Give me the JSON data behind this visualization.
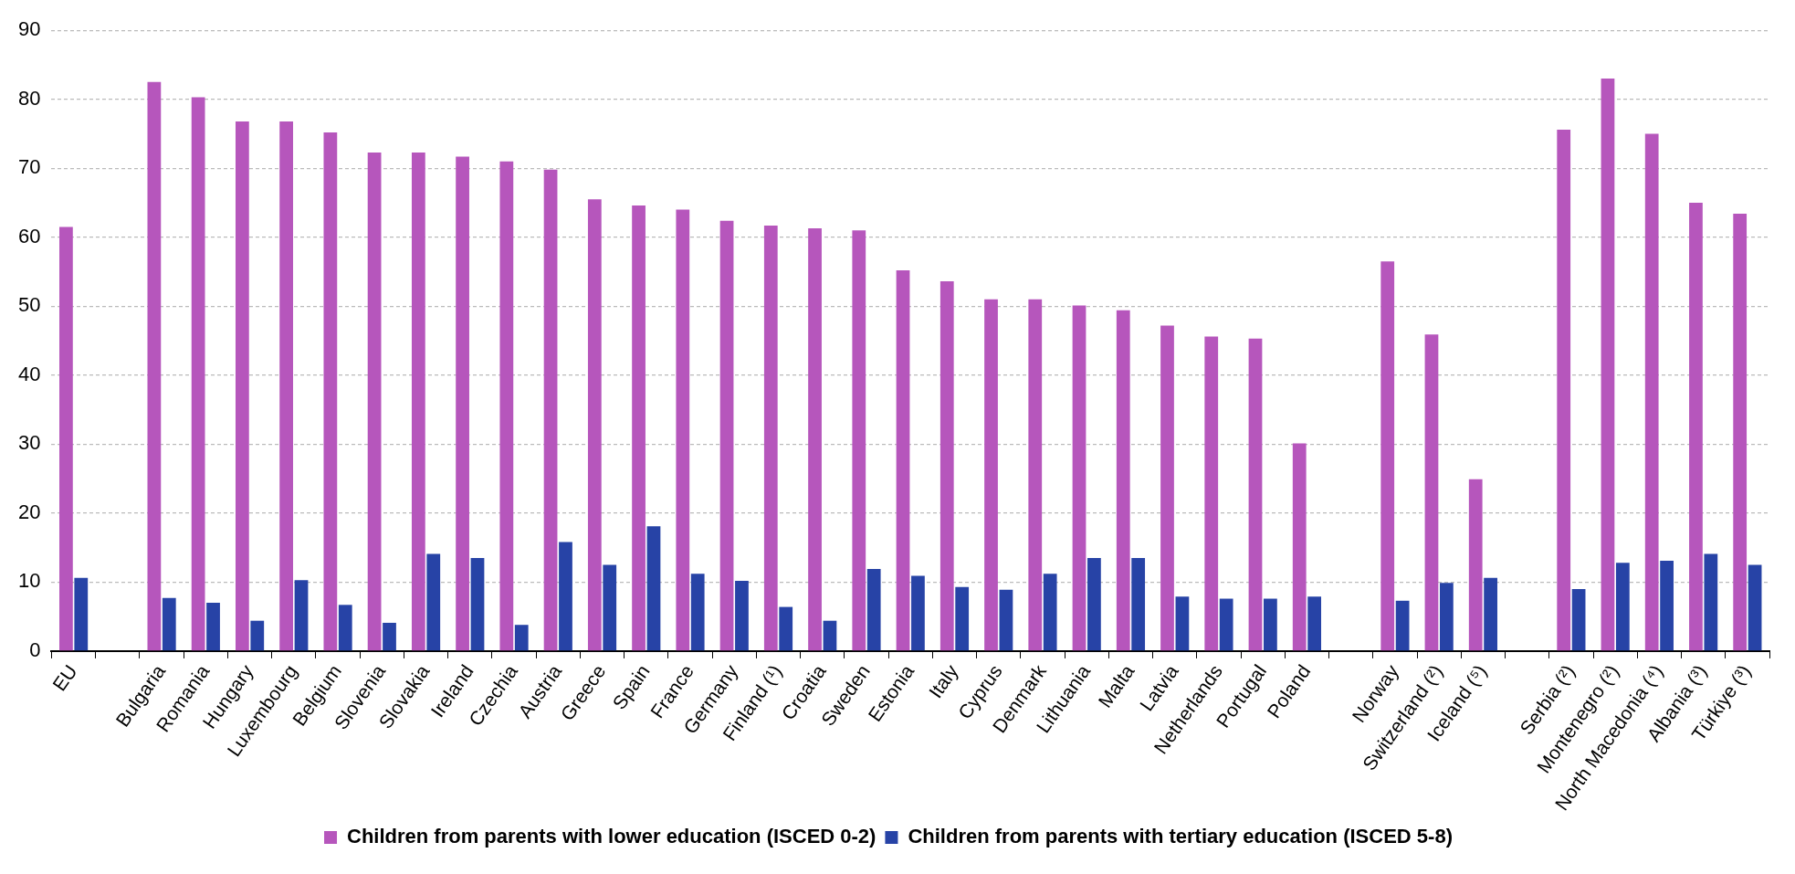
{
  "chart_data": {
    "type": "bar",
    "categories": [
      "EU",
      null,
      "Bulgaria",
      "Romania",
      "Hungary",
      "Luxembourg",
      "Belgium",
      "Slovenia",
      "Slovakia",
      "Ireland",
      "Czechia",
      "Austria",
      "Greece",
      "Spain",
      "France",
      "Germany",
      "Finland (¹)",
      "Croatia",
      "Sweden",
      "Estonia",
      "Italy",
      "Cyprus",
      "Denmark",
      "Lithuania",
      "Malta",
      "Latvia",
      "Netherlands",
      "Portugal",
      "Poland",
      null,
      "Norway",
      "Switzerland (²)",
      "Iceland (⁵)",
      null,
      "Serbia (²)",
      "Montenegro (²)",
      "North Macedonia (⁴)",
      "Albania (³)",
      "Türkiye (³)"
    ],
    "series": [
      {
        "name": "Children from parents with lower education (ISCED 0-2)",
        "color": "#b656bc",
        "values": [
          61.5,
          null,
          82.5,
          80.3,
          76.8,
          76.8,
          75.2,
          72.3,
          72.3,
          71.7,
          71.0,
          69.8,
          65.5,
          64.6,
          64.0,
          62.4,
          61.7,
          61.3,
          61.0,
          55.2,
          53.6,
          51.0,
          51.0,
          50.1,
          49.4,
          47.2,
          45.6,
          45.3,
          30.1,
          null,
          56.5,
          45.9,
          24.9,
          null,
          75.6,
          83.0,
          75.0,
          65.0,
          63.4
        ]
      },
      {
        "name": "Children from parents with tertiary education (ISCED 5-8)",
        "color": "#2743a6",
        "values": [
          10.6,
          null,
          7.7,
          7.0,
          4.4,
          10.3,
          6.7,
          4.1,
          14.1,
          13.5,
          3.8,
          15.8,
          12.5,
          18.1,
          11.2,
          10.2,
          6.4,
          4.4,
          11.9,
          10.9,
          9.3,
          8.9,
          11.2,
          13.5,
          13.5,
          7.9,
          7.6,
          7.6,
          7.9,
          null,
          7.3,
          9.9,
          10.6,
          null,
          9.0,
          12.8,
          13.1,
          14.1,
          12.5
        ]
      }
    ],
    "ylim": [
      0,
      90
    ],
    "yticks": [
      0,
      10,
      20,
      30,
      40,
      50,
      60,
      70,
      80,
      90
    ],
    "grid": "y",
    "legend": "bottom"
  }
}
